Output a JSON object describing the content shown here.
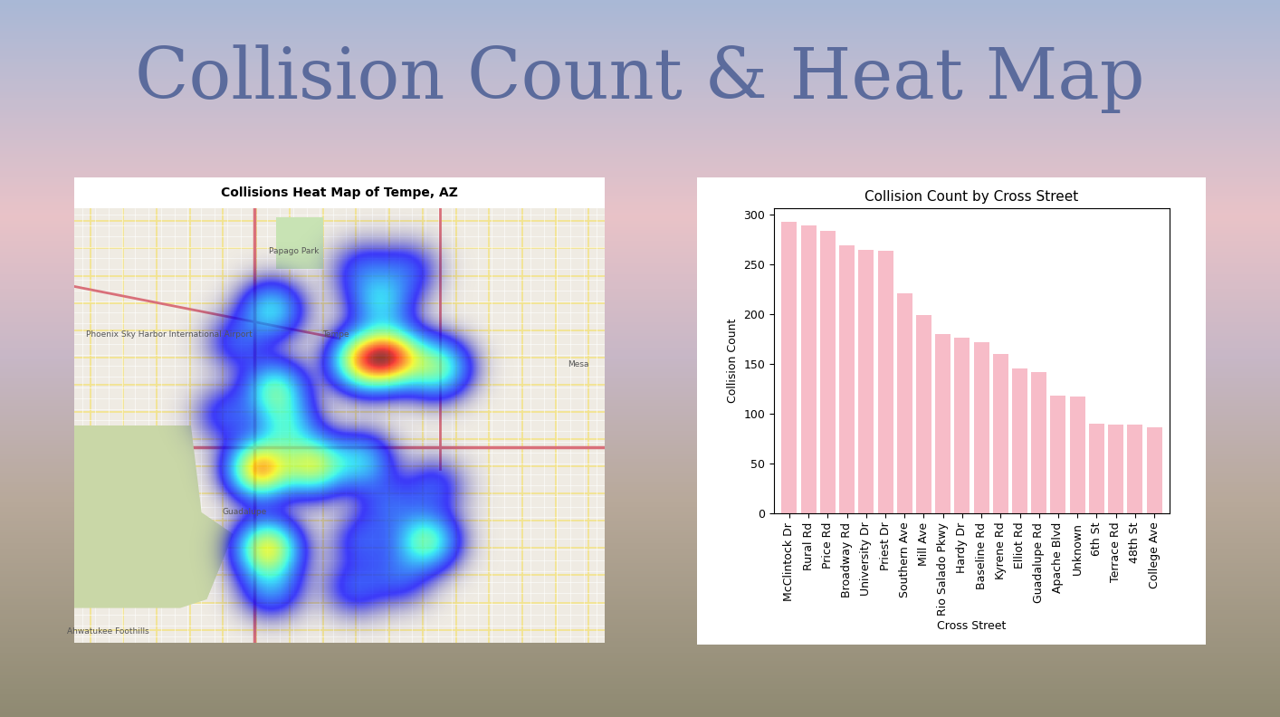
{
  "title": "Collision Count & Heat Map",
  "chart_data": [
    {
      "type": "heatmap",
      "title": "Collisions Heat Map of Tempe, AZ",
      "xlim": [
        -112.0,
        -111.86
      ],
      "ylim": [
        33.33,
        33.45
      ],
      "tick_labels": false,
      "points": [
        {
          "x": -111.916,
          "y": 33.409,
          "weight": 1.0
        },
        {
          "x": -111.924,
          "y": 33.408,
          "weight": 0.85
        },
        {
          "x": -111.904,
          "y": 33.406,
          "weight": 0.6
        },
        {
          "x": -111.951,
          "y": 33.378,
          "weight": 1.0
        },
        {
          "x": -111.937,
          "y": 33.379,
          "weight": 0.75
        },
        {
          "x": -111.949,
          "y": 33.356,
          "weight": 0.85
        },
        {
          "x": -111.907,
          "y": 33.358,
          "weight": 0.6
        },
        {
          "x": -111.947,
          "y": 33.4,
          "weight": 0.55
        },
        {
          "x": -111.948,
          "y": 33.422,
          "weight": 0.45
        },
        {
          "x": -111.944,
          "y": 33.39,
          "weight": 0.4
        },
        {
          "x": -111.919,
          "y": 33.424,
          "weight": 0.4
        },
        {
          "x": -111.924,
          "y": 33.38,
          "weight": 0.4
        },
        {
          "x": -111.917,
          "y": 33.368,
          "weight": 0.2
        },
        {
          "x": -111.924,
          "y": 33.358,
          "weight": 0.2
        },
        {
          "x": -111.914,
          "y": 33.348,
          "weight": 0.2
        },
        {
          "x": -111.926,
          "y": 33.345,
          "weight": 0.2
        },
        {
          "x": -111.905,
          "y": 33.373,
          "weight": 0.2
        },
        {
          "x": -111.96,
          "y": 33.393,
          "weight": 0.2
        },
        {
          "x": -111.948,
          "y": 33.345,
          "weight": 0.3
        },
        {
          "x": -111.924,
          "y": 33.433,
          "weight": 0.2
        },
        {
          "x": -111.912,
          "y": 33.433,
          "weight": 0.2
        },
        {
          "x": -111.957,
          "y": 33.413,
          "weight": 0.2
        }
      ],
      "annotations": [
        {
          "text": "Tempe",
          "x": -111.931,
          "y": 33.415
        },
        {
          "text": "Mesa",
          "x": -111.867,
          "y": 33.407
        },
        {
          "text": "Guadalupe",
          "x": -111.955,
          "y": 33.366
        },
        {
          "text": "Papago Park",
          "x": -111.942,
          "y": 33.438
        },
        {
          "text": "Phoenix Sky Harbor International Airport",
          "x": -111.975,
          "y": 33.415
        },
        {
          "text": "Ahwatukee Foothills",
          "x": -111.991,
          "y": 33.333
        }
      ]
    },
    {
      "type": "bar",
      "title": "Collision Count by Cross Street",
      "x_label": "Cross Street",
      "y_label": "Collision Count",
      "categories": [
        "McClintock Dr",
        "Rural Rd",
        "Price Rd",
        "Broadway Rd",
        "University Dr",
        "Priest Dr",
        "Southern Ave",
        "Mill Ave",
        "Rio Salado Pkwy",
        "Hardy Dr",
        "Baseline Rd",
        "Kyrene Rd",
        "Elliot Rd",
        "Guadalupe Rd",
        "Apache Blvd",
        "Unknown",
        "6th St",
        "Terrace Rd",
        "48th St",
        "College Ave"
      ],
      "values": [
        292,
        289,
        283,
        269,
        264,
        263,
        221,
        199,
        180,
        176,
        172,
        160,
        145,
        142,
        118,
        117,
        90,
        89,
        89,
        86
      ],
      "color": "#f7bcc8",
      "ylim": [
        0,
        306
      ],
      "yticks": [
        0,
        50,
        100,
        150,
        200,
        250,
        300
      ]
    }
  ]
}
